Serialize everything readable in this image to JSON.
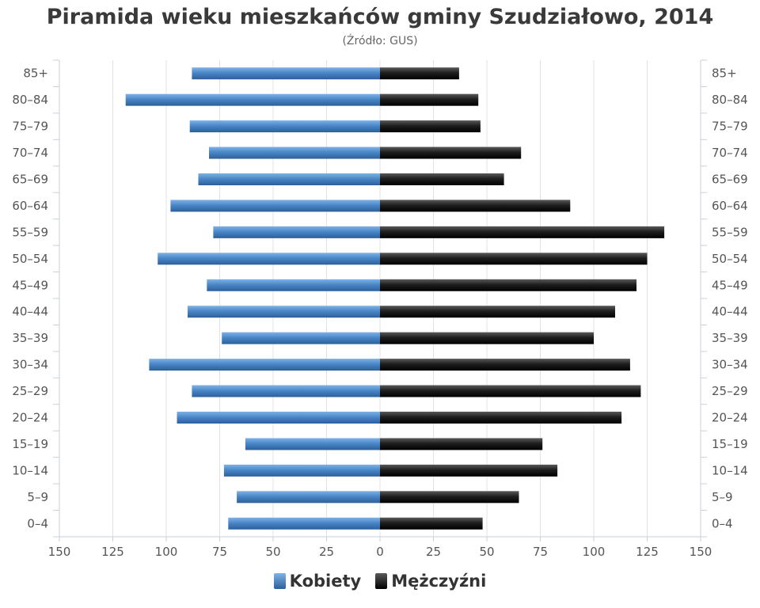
{
  "chart_data": {
    "type": "bar",
    "title": "Piramida wieku mieszkańców gminy Szudziałowo, 2014",
    "subtitle": "(Źródło: GUS)",
    "categories": [
      "85+",
      "80–84",
      "75–79",
      "70–74",
      "65–69",
      "60–64",
      "55–59",
      "50–54",
      "45–49",
      "40–44",
      "35–39",
      "30–34",
      "25–29",
      "20–24",
      "15–19",
      "10–14",
      "5–9",
      "0–4"
    ],
    "xlim": [
      -150,
      150
    ],
    "x_ticks": [
      {
        "value": -150,
        "label": "150"
      },
      {
        "value": -125,
        "label": "125"
      },
      {
        "value": -100,
        "label": "100"
      },
      {
        "value": -75,
        "label": "75"
      },
      {
        "value": -50,
        "label": "50"
      },
      {
        "value": -25,
        "label": "25"
      },
      {
        "value": 0,
        "label": "0"
      },
      {
        "value": 25,
        "label": "25"
      },
      {
        "value": 50,
        "label": "50"
      },
      {
        "value": 75,
        "label": "75"
      },
      {
        "value": 100,
        "label": "100"
      },
      {
        "value": 125,
        "label": "125"
      },
      {
        "value": 150,
        "label": "150"
      }
    ],
    "grid": true,
    "legend_position": "bottom",
    "series": [
      {
        "name": "Kobiety",
        "side": "left",
        "color": "#4a87c8",
        "values": [
          88,
          119,
          89,
          80,
          85,
          98,
          78,
          104,
          81,
          90,
          74,
          108,
          88,
          95,
          63,
          73,
          67,
          71
        ]
      },
      {
        "name": "Mężczyźni",
        "side": "right",
        "color": "#1e1e1e",
        "values": [
          37,
          46,
          47,
          66,
          58,
          89,
          133,
          125,
          120,
          110,
          100,
          117,
          122,
          113,
          76,
          83,
          65,
          48
        ]
      }
    ]
  }
}
